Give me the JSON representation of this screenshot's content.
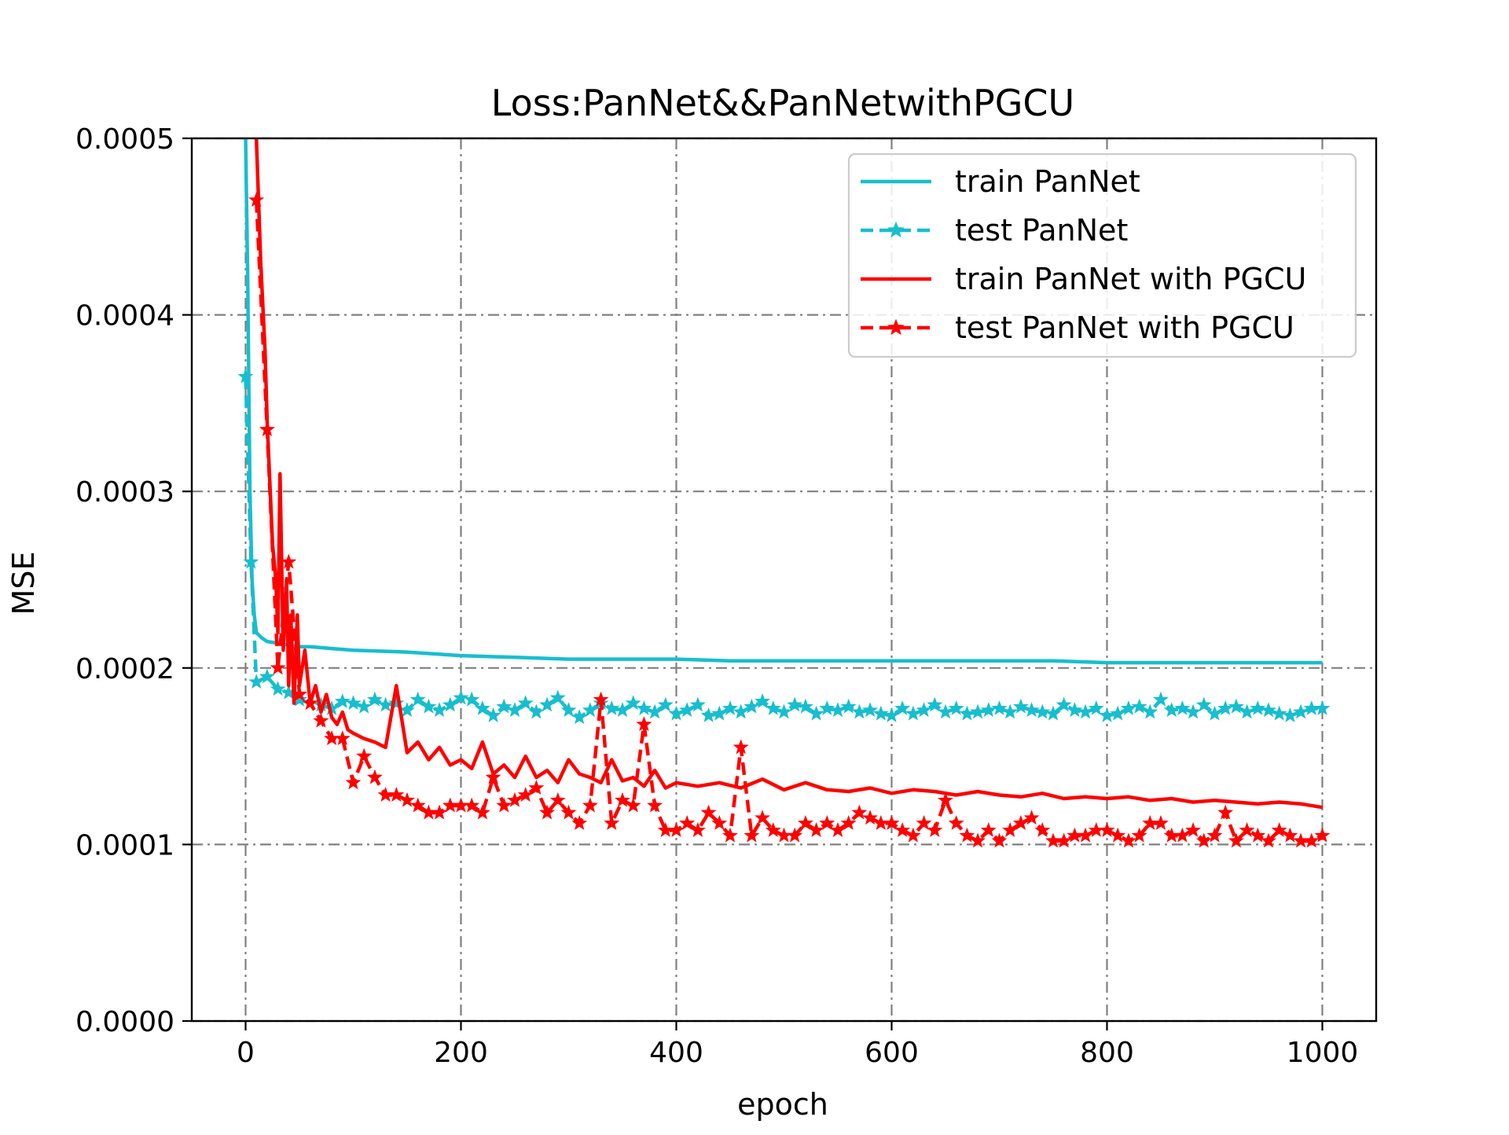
{
  "chart_data": {
    "type": "line",
    "title": "Loss:PanNet&&PanNetwithPGCU",
    "xlabel": "epoch",
    "ylabel": "MSE",
    "xlim": [
      -50,
      1050
    ],
    "ylim": [
      0,
      0.0005
    ],
    "x_ticks": [
      0,
      200,
      400,
      600,
      800,
      1000
    ],
    "x_tick_labels": [
      "0",
      "200",
      "400",
      "600",
      "800",
      "1000"
    ],
    "y_ticks": [
      0,
      0.0001,
      0.0002,
      0.0003,
      0.0004,
      0.0005
    ],
    "y_tick_labels": [
      "0.0000",
      "0.0001",
      "0.0002",
      "0.0003",
      "0.0004",
      "0.0005"
    ],
    "grid": true,
    "grid_style": "dash-dot",
    "legend_position": "top-right",
    "series": [
      {
        "name": "train PanNet",
        "color": "#17becf",
        "line_style": "solid",
        "marker": "none",
        "x": [
          0,
          2,
          4,
          6,
          8,
          10,
          15,
          20,
          30,
          40,
          50,
          60,
          80,
          100,
          150,
          200,
          250,
          300,
          350,
          400,
          450,
          500,
          550,
          600,
          650,
          700,
          750,
          800,
          850,
          900,
          950,
          1000
        ],
        "y": [
          0.0005,
          0.00042,
          0.0003,
          0.00025,
          0.00023,
          0.00022,
          0.000217,
          0.000215,
          0.000214,
          0.000213,
          0.000212,
          0.000212,
          0.000211,
          0.00021,
          0.000209,
          0.000207,
          0.000206,
          0.000205,
          0.000205,
          0.000205,
          0.000204,
          0.000204,
          0.000204,
          0.000204,
          0.000204,
          0.000204,
          0.000204,
          0.000203,
          0.000203,
          0.000203,
          0.000203,
          0.000203
        ]
      },
      {
        "name": "test PanNet",
        "color": "#17becf",
        "line_style": "dashed",
        "marker": "star",
        "x": [
          0,
          5,
          10,
          20,
          30,
          40,
          50,
          60,
          70,
          80,
          90,
          100,
          110,
          120,
          130,
          140,
          150,
          160,
          170,
          180,
          190,
          200,
          210,
          220,
          230,
          240,
          250,
          260,
          270,
          280,
          290,
          300,
          310,
          320,
          330,
          340,
          350,
          360,
          370,
          380,
          390,
          400,
          410,
          420,
          430,
          440,
          450,
          460,
          470,
          480,
          490,
          500,
          510,
          520,
          530,
          540,
          550,
          560,
          570,
          580,
          590,
          600,
          610,
          620,
          630,
          640,
          650,
          660,
          670,
          680,
          690,
          700,
          710,
          720,
          730,
          740,
          750,
          760,
          770,
          780,
          790,
          800,
          810,
          820,
          830,
          840,
          850,
          860,
          870,
          880,
          890,
          900,
          910,
          920,
          930,
          940,
          950,
          960,
          970,
          980,
          990,
          1000
        ],
        "y": [
          0.000365,
          0.00026,
          0.000192,
          0.000195,
          0.000188,
          0.000186,
          0.000182,
          0.00018,
          0.000179,
          0.000177,
          0.000181,
          0.00018,
          0.000178,
          0.000182,
          0.000179,
          0.00018,
          0.000176,
          0.000182,
          0.000178,
          0.000176,
          0.000179,
          0.000183,
          0.000182,
          0.000177,
          0.000173,
          0.000178,
          0.000176,
          0.00018,
          0.000175,
          0.000179,
          0.000183,
          0.000176,
          0.000172,
          0.000176,
          0.00018,
          0.000177,
          0.000176,
          0.00018,
          0.000177,
          0.000175,
          0.000179,
          0.000174,
          0.000176,
          0.000179,
          0.000173,
          0.000174,
          0.000177,
          0.000175,
          0.000178,
          0.000181,
          0.000177,
          0.000175,
          0.000179,
          0.000178,
          0.000174,
          0.000177,
          0.000176,
          0.000178,
          0.000175,
          0.000176,
          0.000174,
          0.000173,
          0.000177,
          0.000174,
          0.000176,
          0.000179,
          0.000175,
          0.000177,
          0.000174,
          0.000175,
          0.000176,
          0.000177,
          0.000175,
          0.000178,
          0.000176,
          0.000175,
          0.000174,
          0.000179,
          0.000176,
          0.000175,
          0.000177,
          0.000173,
          0.000174,
          0.000177,
          0.000178,
          0.000175,
          0.000182,
          0.000176,
          0.000177,
          0.000175,
          0.000179,
          0.000174,
          0.000177,
          0.000178,
          0.000175,
          0.000177,
          0.000176,
          0.000174,
          0.000173,
          0.000175,
          0.000177,
          0.000177
        ]
      },
      {
        "name": "train PanNet with PGCU",
        "color": "#ff0000",
        "line_style": "solid",
        "marker": "none",
        "x": [
          10,
          14,
          18,
          20,
          25,
          28,
          30,
          32,
          35,
          38,
          40,
          42,
          45,
          48,
          50,
          55,
          60,
          65,
          70,
          75,
          80,
          85,
          90,
          95,
          100,
          110,
          120,
          130,
          140,
          150,
          160,
          170,
          180,
          190,
          200,
          210,
          220,
          230,
          240,
          250,
          260,
          270,
          280,
          290,
          300,
          310,
          320,
          330,
          340,
          350,
          360,
          370,
          380,
          390,
          400,
          420,
          440,
          460,
          480,
          500,
          520,
          540,
          560,
          580,
          600,
          620,
          640,
          660,
          680,
          700,
          720,
          740,
          760,
          780,
          800,
          820,
          840,
          860,
          880,
          900,
          920,
          940,
          960,
          980,
          1000
        ],
        "y": [
          0.0005,
          0.00043,
          0.00038,
          0.00034,
          0.00027,
          0.00025,
          0.00022,
          0.00031,
          0.00021,
          0.00025,
          0.00019,
          0.00023,
          0.00018,
          0.00023,
          0.00019,
          0.00021,
          0.00018,
          0.00019,
          0.000175,
          0.000185,
          0.000172,
          0.000168,
          0.000175,
          0.000165,
          0.000163,
          0.00016,
          0.000158,
          0.000155,
          0.00019,
          0.000152,
          0.000158,
          0.000148,
          0.000155,
          0.000145,
          0.000148,
          0.000143,
          0.000158,
          0.00014,
          0.000145,
          0.000138,
          0.00015,
          0.000138,
          0.000142,
          0.000135,
          0.000148,
          0.00014,
          0.000138,
          0.000135,
          0.000148,
          0.000136,
          0.000138,
          0.000133,
          0.000142,
          0.000132,
          0.000135,
          0.000133,
          0.000135,
          0.000132,
          0.000137,
          0.000131,
          0.000135,
          0.000131,
          0.00013,
          0.000132,
          0.000129,
          0.000131,
          0.00013,
          0.000128,
          0.00013,
          0.000128,
          0.000127,
          0.000129,
          0.000126,
          0.000127,
          0.000126,
          0.000127,
          0.000125,
          0.000126,
          0.000124,
          0.000125,
          0.000124,
          0.000123,
          0.000124,
          0.000123,
          0.000121
        ]
      },
      {
        "name": "test PanNet with PGCU",
        "color": "#ff0000",
        "line_style": "dashed",
        "marker": "star",
        "x": [
          10,
          20,
          30,
          40,
          50,
          60,
          70,
          80,
          90,
          100,
          110,
          120,
          130,
          140,
          150,
          160,
          170,
          180,
          190,
          200,
          210,
          220,
          230,
          240,
          250,
          260,
          270,
          280,
          290,
          300,
          310,
          320,
          330,
          340,
          350,
          360,
          370,
          380,
          390,
          400,
          410,
          420,
          430,
          440,
          450,
          460,
          470,
          480,
          490,
          500,
          510,
          520,
          530,
          540,
          550,
          560,
          570,
          580,
          590,
          600,
          610,
          620,
          630,
          640,
          650,
          660,
          670,
          680,
          690,
          700,
          710,
          720,
          730,
          740,
          750,
          760,
          770,
          780,
          790,
          800,
          810,
          820,
          830,
          840,
          850,
          860,
          870,
          880,
          890,
          900,
          910,
          920,
          930,
          940,
          950,
          960,
          970,
          980,
          990,
          1000
        ],
        "y": [
          0.000465,
          0.000335,
          0.0002,
          0.00026,
          0.000185,
          0.00018,
          0.00017,
          0.00016,
          0.00016,
          0.000135,
          0.00015,
          0.000138,
          0.000128,
          0.000128,
          0.000125,
          0.000122,
          0.000118,
          0.000118,
          0.000122,
          0.000122,
          0.000122,
          0.000118,
          0.000138,
          0.000122,
          0.000125,
          0.000128,
          0.000132,
          0.000118,
          0.000125,
          0.000118,
          0.000112,
          0.000122,
          0.000182,
          0.000112,
          0.000125,
          0.000122,
          0.000168,
          0.000122,
          0.000108,
          0.000108,
          0.000112,
          0.000108,
          0.000118,
          0.000112,
          0.000105,
          0.000155,
          0.000105,
          0.000115,
          0.000108,
          0.000105,
          0.000105,
          0.000112,
          0.000108,
          0.000112,
          0.000108,
          0.000112,
          0.000118,
          0.000115,
          0.000112,
          0.000112,
          0.000108,
          0.000105,
          0.000112,
          0.000108,
          0.000125,
          0.000112,
          0.000105,
          0.000102,
          0.000108,
          0.000102,
          0.000108,
          0.000112,
          0.000115,
          0.000108,
          0.000102,
          0.000102,
          0.000105,
          0.000105,
          0.000108,
          0.000108,
          0.000105,
          0.000102,
          0.000105,
          0.000112,
          0.000112,
          0.000105,
          0.000105,
          0.000108,
          0.000102,
          0.000105,
          0.000118,
          0.000102,
          0.000108,
          0.000105,
          0.000102,
          0.000108,
          0.000105,
          0.000102,
          0.000102,
          0.000105
        ]
      }
    ]
  }
}
